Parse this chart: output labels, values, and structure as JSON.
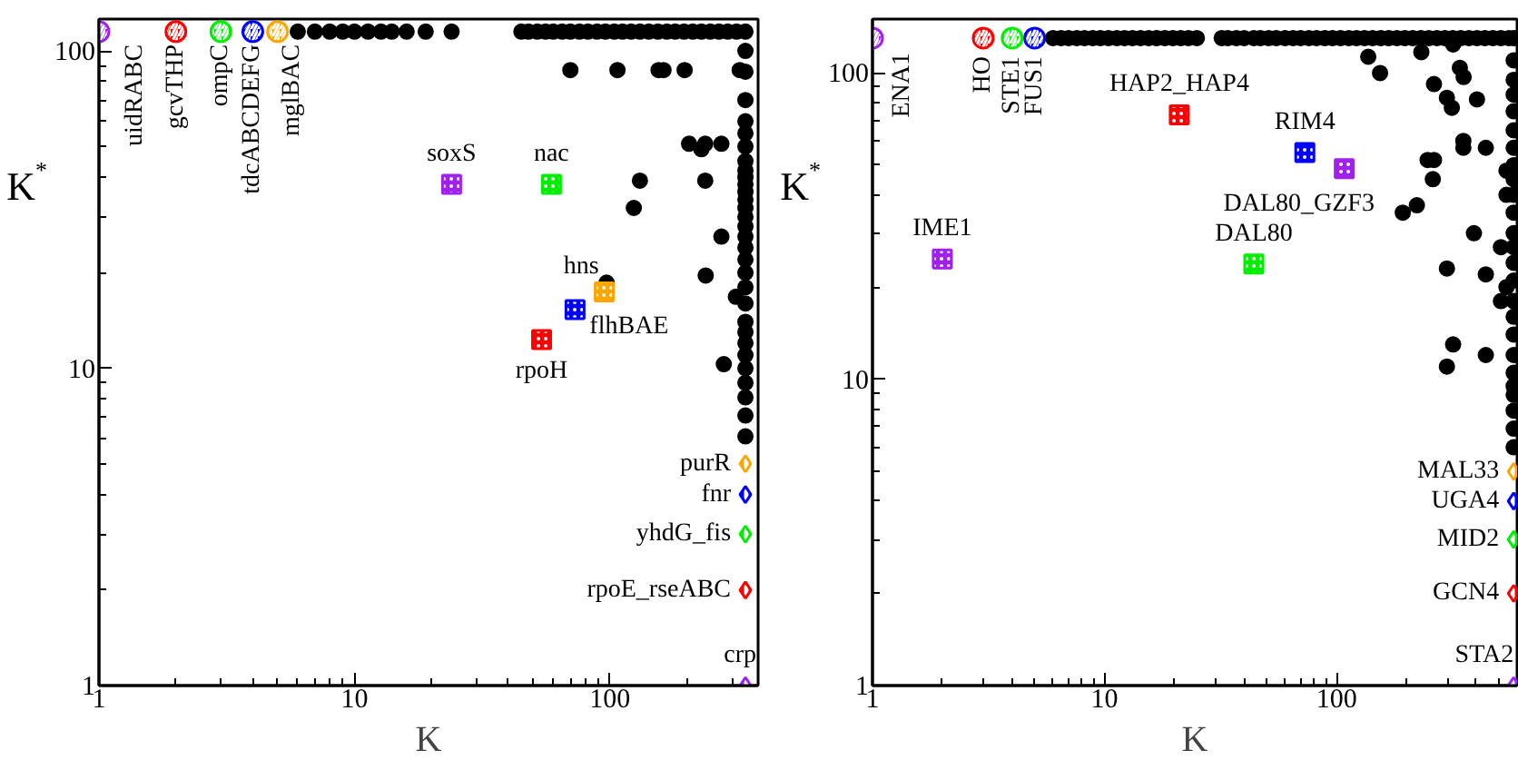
{
  "chart_data": [
    {
      "type": "scatter",
      "xlabel": "K",
      "ylabel": "K$^{*}$",
      "xlim": [
        1,
        380
      ],
      "ylim": [
        1,
        126
      ],
      "xticks": [
        1,
        10,
        100
      ],
      "yticks": [
        1,
        10,
        100
      ],
      "log": "xy",
      "grid": false,
      "series": [
        {
          "color": "#000000",
          "marker": "circle",
          "x": [
            6,
            7,
            8,
            9,
            10,
            11.3,
            12.7,
            14,
            16,
            19,
            24
          ],
          "values": [
            115,
            115,
            115,
            115,
            115,
            115,
            115,
            115,
            115,
            115,
            115
          ]
        },
        {
          "color": "#000000",
          "marker": "circle",
          "x": [
            45,
            48,
            52,
            56,
            60,
            65,
            70,
            76,
            82,
            89,
            96,
            104,
            112,
            121,
            131,
            142,
            154,
            167,
            180,
            195,
            211,
            228,
            247,
            267,
            289,
            313
          ],
          "values": [
            115,
            115,
            115,
            115,
            115,
            115,
            115,
            115,
            115,
            115,
            115,
            115,
            115,
            115,
            115,
            115,
            115,
            115,
            115,
            115,
            115,
            115,
            115,
            115,
            115,
            115
          ]
        },
        {
          "color": "#000000",
          "marker": "circle",
          "x": [
            339,
            339,
            339,
            339,
            339,
            339,
            339,
            339,
            339,
            339,
            339,
            339,
            339,
            339,
            339,
            339,
            339,
            339,
            339,
            339,
            339,
            339,
            339,
            339,
            339,
            339,
            339,
            339,
            339,
            339,
            339
          ],
          "values": [
            115,
            100,
            86,
            70,
            60,
            55,
            50,
            45,
            42,
            40,
            38,
            36,
            34,
            32,
            30,
            28,
            26,
            24,
            22,
            20,
            18,
            16,
            14,
            13,
            12,
            11,
            10,
            9,
            8.1,
            7.1,
            6.1
          ]
        },
        {
          "color": "#000000",
          "marker": "circle",
          "x": [
            70,
            107,
            155,
            162,
            196,
            322,
            204,
            236,
            273,
            228,
            131,
            124,
            236,
            273,
            237,
            97,
            279,
            311
          ],
          "values": [
            87,
            87,
            87,
            87,
            87,
            87,
            51,
            51,
            51,
            49,
            39,
            32,
            39,
            26,
            19.6,
            18.6,
            10.3,
            16.8
          ]
        },
        {
          "name": "uidRABC",
          "color": "#a020f0",
          "marker": "circle",
          "x": [
            1
          ],
          "values": [
            115
          ]
        },
        {
          "name": "gcvTHP",
          "color": "#ff0000",
          "marker": "circle",
          "x": [
            2
          ],
          "values": [
            115
          ]
        },
        {
          "name": "ompC",
          "color": "#00ee00",
          "marker": "circle",
          "x": [
            3
          ],
          "values": [
            115
          ]
        },
        {
          "name": "tdcABCDEFG",
          "color": "#0000ff",
          "marker": "circle",
          "x": [
            4
          ],
          "values": [
            115
          ]
        },
        {
          "name": "mglBAC",
          "color": "#ffa500",
          "marker": "circle",
          "x": [
            5
          ],
          "values": [
            115
          ]
        },
        {
          "name": "soxS",
          "color": "#a020f0",
          "marker": "square",
          "x": [
            24
          ],
          "values": [
            38
          ]
        },
        {
          "name": "nac",
          "color": "#00ee00",
          "marker": "square",
          "x": [
            59
          ],
          "values": [
            38
          ]
        },
        {
          "name": "hns",
          "color": "#ffa500",
          "marker": "square",
          "x": [
            95
          ],
          "values": [
            17.4
          ]
        },
        {
          "name": "flhBAE",
          "color": "#0000ff",
          "marker": "square",
          "x": [
            73
          ],
          "values": [
            15.3
          ]
        },
        {
          "name": "rpoH",
          "color": "#ff0000",
          "marker": "square",
          "x": [
            54
          ],
          "values": [
            12.3
          ]
        },
        {
          "name": "purR",
          "color": "#ffa500",
          "marker": "diamond",
          "x": [
            339
          ],
          "values": [
            5
          ]
        },
        {
          "name": "fnr",
          "color": "#0000ff",
          "marker": "diamond",
          "x": [
            339
          ],
          "values": [
            4
          ]
        },
        {
          "name": "yhdG_fis",
          "color": "#00ee00",
          "marker": "diamond",
          "x": [
            339
          ],
          "values": [
            3
          ]
        },
        {
          "name": "rpoE_rseABC",
          "color": "#ff0000",
          "marker": "diamond",
          "x": [
            339
          ],
          "values": [
            2
          ]
        },
        {
          "name": "crp",
          "color": "#a020f0",
          "marker": "diamond",
          "x": [
            339
          ],
          "values": [
            1
          ]
        }
      ]
    },
    {
      "type": "scatter",
      "xlabel": "K",
      "ylabel": "K$^{*}$",
      "xlim": [
        1,
        600
      ],
      "ylim": [
        1,
        150
      ],
      "xticks": [
        1,
        10,
        100
      ],
      "yticks": [
        1,
        10,
        100
      ],
      "log": "xy",
      "grid": false,
      "series": [
        {
          "color": "#000000",
          "marker": "circle",
          "x": [
            6,
            6.5,
            7,
            7.6,
            8.2,
            8.9,
            9.6,
            10.4,
            11.3,
            12.2,
            13.2,
            14.3,
            15.5,
            16.8,
            18.2,
            19.7,
            21.3,
            23,
            25,
            32,
            34,
            37,
            40,
            44,
            47,
            51,
            55,
            60,
            65,
            70,
            76,
            82,
            89,
            96,
            104,
            113,
            122,
            132,
            143,
            155,
            168,
            182,
            197,
            213,
            231,
            250,
            271,
            293,
            317,
            343,
            372,
            403,
            436,
            472,
            511,
            553,
            580,
            580,
            580,
            580,
            580,
            580,
            580,
            580,
            580,
            580,
            580,
            580,
            580,
            580,
            580,
            580,
            580,
            580,
            580,
            580,
            580,
            580,
            580,
            580,
            580,
            137,
            154,
            232,
            318,
            263,
            340,
            353,
            299,
            314,
            403,
            352,
            352,
            440,
            247,
            263,
            260,
            193,
            222,
            391,
            511,
            299,
            440,
            511,
            540,
            318,
            299,
            440,
            540,
            540
          ],
          "values": [
            130,
            130,
            130,
            130,
            130,
            130,
            130,
            130,
            130,
            130,
            130,
            130,
            130,
            130,
            130,
            130,
            130,
            130,
            130,
            130,
            130,
            130,
            130,
            130,
            130,
            130,
            130,
            130,
            130,
            130,
            130,
            130,
            130,
            130,
            130,
            130,
            130,
            130,
            130,
            130,
            130,
            130,
            130,
            130,
            130,
            130,
            130,
            130,
            130,
            130,
            130,
            130,
            130,
            130,
            130,
            130,
            130,
            110,
            95,
            85,
            75,
            65,
            57,
            50,
            45,
            40,
            35,
            30,
            27,
            24,
            21,
            18,
            16,
            14,
            12,
            10.5,
            9.5,
            8.9,
            7.9,
            6.9,
            6,
            113,
            100,
            117,
            124,
            92,
            104,
            97,
            83,
            77,
            82,
            60,
            57,
            57,
            52,
            52,
            45,
            35,
            37,
            30,
            27,
            23,
            22,
            18,
            20,
            13,
            11,
            12,
            48,
            40
          ]
        },
        {
          "name": "ENA1",
          "color": "#a020f0",
          "marker": "circle",
          "x": [
            1
          ],
          "values": [
            130
          ]
        },
        {
          "name": "HO",
          "color": "#ff0000",
          "marker": "circle",
          "x": [
            3
          ],
          "values": [
            130
          ]
        },
        {
          "name": "STE1",
          "color": "#00ee00",
          "marker": "circle",
          "x": [
            4
          ],
          "values": [
            130
          ]
        },
        {
          "name": "FUS1",
          "color": "#0000ff",
          "marker": "circle",
          "x": [
            5
          ],
          "values": [
            130
          ]
        },
        {
          "name": "HAP2_HAP4",
          "color": "#ff0000",
          "marker": "square",
          "x": [
            21
          ],
          "values": [
            73
          ]
        },
        {
          "name": "RIM4",
          "color": "#0000ff",
          "marker": "square",
          "x": [
            73
          ],
          "values": [
            55
          ]
        },
        {
          "name": "DAL80_GZF3",
          "color": "#a020f0",
          "marker": "square",
          "x": [
            108
          ],
          "values": [
            48.7
          ]
        },
        {
          "name": "IME1",
          "color": "#a020f0",
          "marker": "square",
          "x": [
            2
          ],
          "values": [
            24.7
          ]
        },
        {
          "name": "DAL80",
          "color": "#00ee00",
          "marker": "square",
          "x": [
            44
          ],
          "values": [
            23.8
          ]
        },
        {
          "name": "MAL33",
          "color": "#ffa500",
          "marker": "diamond",
          "x": [
            580
          ],
          "values": [
            5
          ]
        },
        {
          "name": "UGA4",
          "color": "#0000ff",
          "marker": "diamond",
          "x": [
            580
          ],
          "values": [
            4
          ]
        },
        {
          "name": "MID2",
          "color": "#00ee00",
          "marker": "diamond",
          "x": [
            580
          ],
          "values": [
            3
          ]
        },
        {
          "name": "GCN4",
          "color": "#ff0000",
          "marker": "diamond",
          "x": [
            580
          ],
          "values": [
            2
          ]
        },
        {
          "name": "STA2",
          "color": "#a020f0",
          "marker": "diamond",
          "x": [
            580
          ],
          "values": [
            1
          ]
        }
      ]
    }
  ]
}
